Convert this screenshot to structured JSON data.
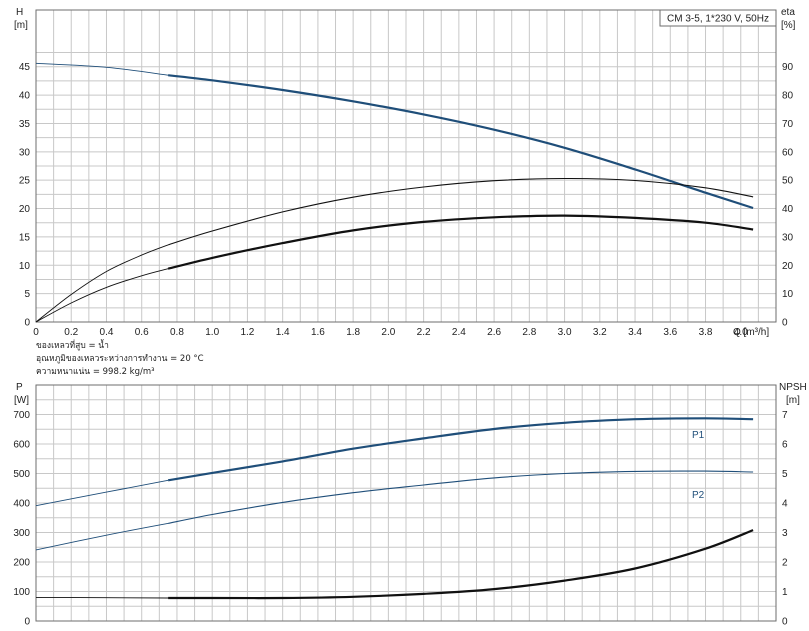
{
  "chart_data": [
    {
      "type": "line",
      "title": "CM 3-5, 1*230 V, 50Hz",
      "xlabel": "Q [m³/h]",
      "ylabel_left": [
        "H",
        "[m]"
      ],
      "ylabel_right": [
        "eta",
        "[%]"
      ],
      "xlim": [
        0,
        4.2
      ],
      "ylim_left": [
        0,
        55
      ],
      "ylim_right": [
        0,
        110
      ],
      "x_ticks": [
        "0",
        "0.2",
        "0.4",
        "0.6",
        "0.8",
        "1.0",
        "1.2",
        "1.4",
        "1.6",
        "1.8",
        "2.0",
        "2.2",
        "2.4",
        "2.6",
        "2.8",
        "3.0",
        "3.2",
        "3.4",
        "3.6",
        "3.8",
        "4.0"
      ],
      "y_ticks_left": [
        "0",
        "5",
        "10",
        "15",
        "20",
        "25",
        "30",
        "35",
        "40",
        "45"
      ],
      "y_ticks_right": [
        "0",
        "10",
        "20",
        "30",
        "40",
        "50",
        "60",
        "70",
        "80",
        "90"
      ],
      "grid": true,
      "series": [
        {
          "axis": "left",
          "weight": "heavy",
          "color": "#1f4e79",
          "thin_until": 0.75,
          "x": [
            0,
            0.4,
            0.75,
            1.0,
            1.4,
            1.8,
            2.2,
            2.6,
            3.0,
            3.4,
            3.8,
            4.07
          ],
          "y": [
            45.6,
            44.9,
            43.5,
            42.6,
            40.9,
            38.9,
            36.6,
            33.9,
            30.7,
            26.9,
            22.8,
            20.1
          ]
        },
        {
          "axis": "right",
          "weight": "heavy",
          "color": "#111111",
          "thin_until": 0.75,
          "x": [
            0,
            0.2,
            0.4,
            0.6,
            0.75,
            1.0,
            1.4,
            1.8,
            2.2,
            2.6,
            3.0,
            3.4,
            3.8,
            4.07
          ],
          "y": [
            0,
            6.7,
            12.2,
            16.3,
            18.8,
            22.6,
            27.8,
            32.3,
            35.3,
            36.9,
            37.5,
            36.7,
            35.0,
            32.6
          ]
        },
        {
          "axis": "right",
          "weight": "thin",
          "color": "#111111",
          "thin_until": 0.75,
          "x": [
            0,
            0.2,
            0.4,
            0.6,
            0.75,
            1.0,
            1.4,
            1.8,
            2.2,
            2.6,
            3.0,
            3.4,
            3.8,
            4.07
          ],
          "y": [
            0,
            9.7,
            17.8,
            23.6,
            27.2,
            32.1,
            38.8,
            44.0,
            47.6,
            49.8,
            50.6,
            49.9,
            47.3,
            44.1
          ]
        }
      ]
    },
    {
      "type": "line",
      "ylabel_left": [
        "P",
        "[W]"
      ],
      "ylabel_right": [
        "NPSH",
        "[m]"
      ],
      "xlim": [
        0,
        4.2
      ],
      "ylim_left": [
        0,
        800
      ],
      "ylim_right": [
        0,
        8
      ],
      "y_ticks_left": [
        "0",
        "100",
        "200",
        "300",
        "400",
        "500",
        "600",
        "700"
      ],
      "y_ticks_right": [
        "0",
        "1",
        "2",
        "3",
        "4",
        "5",
        "6",
        "7"
      ],
      "grid": true,
      "series": [
        {
          "name": "P1",
          "axis": "left",
          "weight": "heavy",
          "color": "#1f4e79",
          "thin_until": 0.75,
          "x": [
            0,
            0.4,
            0.75,
            1.0,
            1.4,
            1.8,
            2.2,
            2.6,
            3.0,
            3.4,
            3.8,
            4.07
          ],
          "y": [
            391,
            437,
            477,
            502,
            541,
            584,
            619,
            651,
            672,
            684,
            687,
            684
          ]
        },
        {
          "name": "P2",
          "axis": "left",
          "weight": "thin",
          "color": "#1f4e79",
          "thin_until": 0.75,
          "x": [
            0,
            0.4,
            0.75,
            1.0,
            1.4,
            1.8,
            2.2,
            2.6,
            3.0,
            3.4,
            3.8,
            4.07
          ],
          "y": [
            241,
            291,
            331,
            361,
            402,
            435,
            461,
            485,
            500,
            507,
            508,
            505
          ]
        },
        {
          "axis": "right",
          "weight": "heavy",
          "color": "#111111",
          "thin_until": 0.75,
          "x": [
            0,
            0.4,
            0.75,
            1.0,
            1.4,
            1.8,
            2.2,
            2.6,
            3.0,
            3.4,
            3.8,
            4.07
          ],
          "y": [
            0.8,
            0.79,
            0.78,
            0.78,
            0.78,
            0.82,
            0.92,
            1.08,
            1.37,
            1.78,
            2.45,
            3.08
          ]
        }
      ]
    }
  ],
  "notes": [
    "ของเหลวที่สูบ = น้ำ",
    "อุณหภูมิของเหลวระหว่างการทำงาน = 20 °C",
    "ความหนาแน่น = 998.2 kg/m³"
  ]
}
